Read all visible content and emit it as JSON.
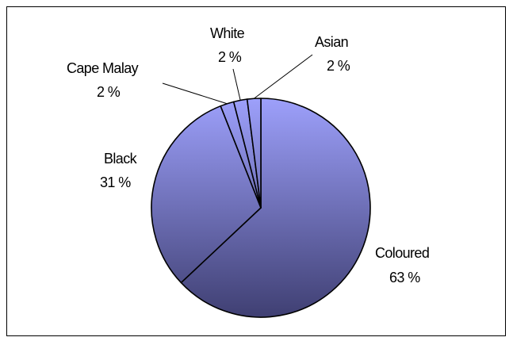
{
  "chart_data": {
    "type": "pie",
    "title": "",
    "slices": [
      {
        "name": "Coloured",
        "value": 63,
        "label": "63 %"
      },
      {
        "name": "Black",
        "value": 31,
        "label": "31 %"
      },
      {
        "name": "Cape Malay",
        "value": 2,
        "label": "2 %"
      },
      {
        "name": "White",
        "value": 2,
        "label": "2 %"
      },
      {
        "name": "Asian",
        "value": 2,
        "label": "2 %"
      }
    ],
    "start": "12 o'clock",
    "direction": "clockwise",
    "fill_gradient": [
      "#9da0fb",
      "#3f3f72"
    ],
    "outline_color": "#000000",
    "legend": "none"
  }
}
